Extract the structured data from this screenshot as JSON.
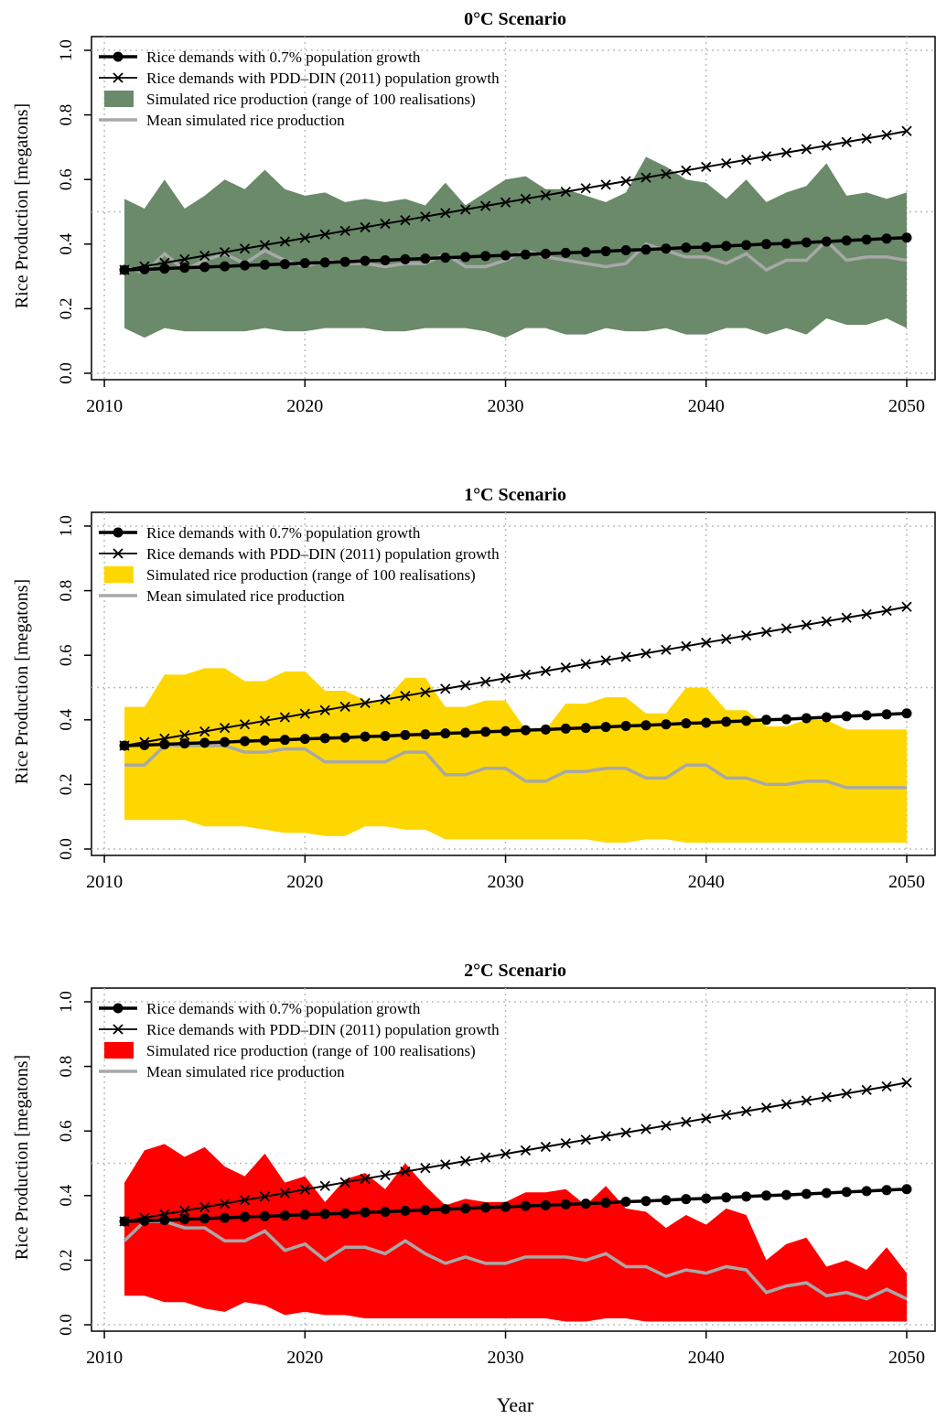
{
  "figure": {
    "ylabel": "Rice Production [megatons]",
    "xlabel": "Year"
  },
  "legend_labels": {
    "demand_07": "Rice demands with 0.7% population growth",
    "demand_pdd": "Rice demands with PDD–DIN (2011) population growth",
    "sim_range": "Simulated rice production (range of 100 realisations)",
    "sim_mean": "Mean simulated rice production"
  },
  "colors": {
    "demand_lines": "#000000",
    "mean_line": "#a8a8a8",
    "grid": "#bdbdbd"
  },
  "chart_data": [
    {
      "type": "area",
      "title": "0°C Scenario",
      "band_color": "#6a8a6a",
      "xlim": [
        2010,
        2051
      ],
      "ylim": [
        0.0,
        1.0
      ],
      "xticks": [
        2010,
        2020,
        2030,
        2040,
        2050
      ],
      "yticks": [
        "0.0",
        "0.2",
        "0.4",
        "0.6",
        "0.8",
        "1.0"
      ],
      "grid": true,
      "legend_position": "top-left",
      "x": [
        2011,
        2012,
        2013,
        2014,
        2015,
        2016,
        2017,
        2018,
        2019,
        2020,
        2021,
        2022,
        2023,
        2024,
        2025,
        2026,
        2027,
        2028,
        2029,
        2030,
        2031,
        2032,
        2033,
        2034,
        2035,
        2036,
        2037,
        2038,
        2039,
        2040,
        2041,
        2042,
        2043,
        2044,
        2045,
        2046,
        2047,
        2048,
        2049,
        2050
      ],
      "series": [
        {
          "name": "Rice demands with 0.7% population growth",
          "values": [
            0.32,
            0.322,
            0.324,
            0.327,
            0.329,
            0.331,
            0.334,
            0.336,
            0.338,
            0.341,
            0.343,
            0.345,
            0.348,
            0.35,
            0.353,
            0.355,
            0.358,
            0.36,
            0.363,
            0.365,
            0.368,
            0.37,
            0.373,
            0.375,
            0.378,
            0.381,
            0.383,
            0.386,
            0.389,
            0.391,
            0.394,
            0.397,
            0.4,
            0.402,
            0.405,
            0.408,
            0.411,
            0.414,
            0.417,
            0.42
          ]
        },
        {
          "name": "Rice demands with PDD–DIN (2011) population growth",
          "values": [
            0.32,
            0.331,
            0.342,
            0.353,
            0.364,
            0.375,
            0.386,
            0.397,
            0.408,
            0.419,
            0.43,
            0.441,
            0.452,
            0.463,
            0.474,
            0.485,
            0.496,
            0.507,
            0.518,
            0.529,
            0.54,
            0.551,
            0.562,
            0.573,
            0.584,
            0.595,
            0.606,
            0.617,
            0.628,
            0.639,
            0.65,
            0.661,
            0.672,
            0.683,
            0.694,
            0.705,
            0.716,
            0.727,
            0.738,
            0.75
          ]
        },
        {
          "name": "Simulated rice production (range of 100 realisations)",
          "lower": [
            0.14,
            0.11,
            0.14,
            0.13,
            0.13,
            0.13,
            0.13,
            0.14,
            0.13,
            0.13,
            0.14,
            0.14,
            0.14,
            0.13,
            0.13,
            0.14,
            0.14,
            0.14,
            0.13,
            0.11,
            0.14,
            0.14,
            0.12,
            0.12,
            0.14,
            0.13,
            0.13,
            0.14,
            0.12,
            0.12,
            0.14,
            0.14,
            0.12,
            0.14,
            0.12,
            0.17,
            0.15,
            0.15,
            0.17,
            0.14
          ],
          "upper": [
            0.54,
            0.51,
            0.6,
            0.51,
            0.55,
            0.6,
            0.57,
            0.63,
            0.57,
            0.55,
            0.56,
            0.53,
            0.54,
            0.53,
            0.54,
            0.52,
            0.59,
            0.52,
            0.56,
            0.6,
            0.61,
            0.57,
            0.57,
            0.55,
            0.53,
            0.56,
            0.67,
            0.64,
            0.6,
            0.59,
            0.54,
            0.6,
            0.53,
            0.56,
            0.58,
            0.65,
            0.55,
            0.56,
            0.54,
            0.56
          ]
        },
        {
          "name": "Mean simulated rice production",
          "values": [
            0.33,
            0.31,
            0.37,
            0.32,
            0.35,
            0.37,
            0.34,
            0.38,
            0.35,
            0.33,
            0.35,
            0.34,
            0.34,
            0.33,
            0.34,
            0.34,
            0.37,
            0.33,
            0.33,
            0.35,
            0.38,
            0.36,
            0.35,
            0.34,
            0.33,
            0.34,
            0.4,
            0.38,
            0.36,
            0.36,
            0.34,
            0.37,
            0.32,
            0.35,
            0.35,
            0.41,
            0.35,
            0.36,
            0.36,
            0.35
          ]
        }
      ]
    },
    {
      "type": "area",
      "title": "1°C Scenario",
      "band_color": "#ffd700",
      "xlim": [
        2010,
        2051
      ],
      "ylim": [
        0.0,
        1.0
      ],
      "xticks": [
        2010,
        2020,
        2030,
        2040,
        2050
      ],
      "yticks": [
        "0.0",
        "0.2",
        "0.4",
        "0.6",
        "0.8",
        "1.0"
      ],
      "grid": true,
      "legend_position": "top-left",
      "x": [
        2011,
        2012,
        2013,
        2014,
        2015,
        2016,
        2017,
        2018,
        2019,
        2020,
        2021,
        2022,
        2023,
        2024,
        2025,
        2026,
        2027,
        2028,
        2029,
        2030,
        2031,
        2032,
        2033,
        2034,
        2035,
        2036,
        2037,
        2038,
        2039,
        2040,
        2041,
        2042,
        2043,
        2044,
        2045,
        2046,
        2047,
        2048,
        2049,
        2050
      ],
      "series": [
        {
          "name": "Rice demands with 0.7% population growth",
          "values": [
            0.32,
            0.322,
            0.324,
            0.327,
            0.329,
            0.331,
            0.334,
            0.336,
            0.338,
            0.341,
            0.343,
            0.345,
            0.348,
            0.35,
            0.353,
            0.355,
            0.358,
            0.36,
            0.363,
            0.365,
            0.368,
            0.37,
            0.373,
            0.375,
            0.378,
            0.381,
            0.383,
            0.386,
            0.389,
            0.391,
            0.394,
            0.397,
            0.4,
            0.402,
            0.405,
            0.408,
            0.411,
            0.414,
            0.417,
            0.42
          ]
        },
        {
          "name": "Rice demands with PDD–DIN (2011) population growth",
          "values": [
            0.32,
            0.331,
            0.342,
            0.353,
            0.364,
            0.375,
            0.386,
            0.397,
            0.408,
            0.419,
            0.43,
            0.441,
            0.452,
            0.463,
            0.474,
            0.485,
            0.496,
            0.507,
            0.518,
            0.529,
            0.54,
            0.551,
            0.562,
            0.573,
            0.584,
            0.595,
            0.606,
            0.617,
            0.628,
            0.639,
            0.65,
            0.661,
            0.672,
            0.683,
            0.694,
            0.705,
            0.716,
            0.727,
            0.738,
            0.75
          ]
        },
        {
          "name": "Simulated rice production (range of 100 realisations)",
          "lower": [
            0.09,
            0.09,
            0.09,
            0.09,
            0.07,
            0.07,
            0.07,
            0.06,
            0.05,
            0.05,
            0.04,
            0.04,
            0.07,
            0.07,
            0.06,
            0.06,
            0.03,
            0.03,
            0.03,
            0.03,
            0.03,
            0.03,
            0.03,
            0.03,
            0.02,
            0.02,
            0.03,
            0.03,
            0.02,
            0.02,
            0.02,
            0.02,
            0.02,
            0.02,
            0.02,
            0.02,
            0.02,
            0.02,
            0.02,
            0.02
          ],
          "upper": [
            0.44,
            0.44,
            0.54,
            0.54,
            0.56,
            0.56,
            0.52,
            0.52,
            0.55,
            0.55,
            0.49,
            0.49,
            0.46,
            0.46,
            0.53,
            0.53,
            0.44,
            0.44,
            0.46,
            0.46,
            0.37,
            0.37,
            0.45,
            0.45,
            0.47,
            0.47,
            0.42,
            0.42,
            0.5,
            0.5,
            0.43,
            0.43,
            0.38,
            0.38,
            0.4,
            0.4,
            0.37,
            0.37,
            0.37,
            0.37
          ]
        },
        {
          "name": "Mean simulated rice production",
          "values": [
            0.26,
            0.26,
            0.32,
            0.32,
            0.32,
            0.32,
            0.3,
            0.3,
            0.31,
            0.31,
            0.27,
            0.27,
            0.27,
            0.27,
            0.3,
            0.3,
            0.23,
            0.23,
            0.25,
            0.25,
            0.21,
            0.21,
            0.24,
            0.24,
            0.25,
            0.25,
            0.22,
            0.22,
            0.26,
            0.26,
            0.22,
            0.22,
            0.2,
            0.2,
            0.21,
            0.21,
            0.19,
            0.19,
            0.19,
            0.19
          ]
        }
      ]
    },
    {
      "type": "area",
      "title": "2°C Scenario",
      "band_color": "#ff0000",
      "xlim": [
        2010,
        2051
      ],
      "ylim": [
        0.0,
        1.0
      ],
      "xticks": [
        2010,
        2020,
        2030,
        2040,
        2050
      ],
      "yticks": [
        "0.0",
        "0.2",
        "0.4",
        "0.6",
        "0.8",
        "1.0"
      ],
      "grid": true,
      "legend_position": "top-left",
      "x": [
        2011,
        2012,
        2013,
        2014,
        2015,
        2016,
        2017,
        2018,
        2019,
        2020,
        2021,
        2022,
        2023,
        2024,
        2025,
        2026,
        2027,
        2028,
        2029,
        2030,
        2031,
        2032,
        2033,
        2034,
        2035,
        2036,
        2037,
        2038,
        2039,
        2040,
        2041,
        2042,
        2043,
        2044,
        2045,
        2046,
        2047,
        2048,
        2049,
        2050
      ],
      "series": [
        {
          "name": "Rice demands with 0.7% population growth",
          "values": [
            0.32,
            0.322,
            0.324,
            0.327,
            0.329,
            0.331,
            0.334,
            0.336,
            0.338,
            0.341,
            0.343,
            0.345,
            0.348,
            0.35,
            0.353,
            0.355,
            0.358,
            0.36,
            0.363,
            0.365,
            0.368,
            0.37,
            0.373,
            0.375,
            0.378,
            0.381,
            0.383,
            0.386,
            0.389,
            0.391,
            0.394,
            0.397,
            0.4,
            0.402,
            0.405,
            0.408,
            0.411,
            0.414,
            0.417,
            0.42
          ]
        },
        {
          "name": "Rice demands with PDD–DIN (2011) population growth",
          "values": [
            0.32,
            0.331,
            0.342,
            0.353,
            0.364,
            0.375,
            0.386,
            0.397,
            0.408,
            0.419,
            0.43,
            0.441,
            0.452,
            0.463,
            0.474,
            0.485,
            0.496,
            0.507,
            0.518,
            0.529,
            0.54,
            0.551,
            0.562,
            0.573,
            0.584,
            0.595,
            0.606,
            0.617,
            0.628,
            0.639,
            0.65,
            0.661,
            0.672,
            0.683,
            0.694,
            0.705,
            0.716,
            0.727,
            0.738,
            0.75
          ]
        },
        {
          "name": "Simulated rice production (range of 100 realisations)",
          "lower": [
            0.09,
            0.09,
            0.07,
            0.07,
            0.05,
            0.04,
            0.07,
            0.06,
            0.03,
            0.04,
            0.03,
            0.03,
            0.02,
            0.02,
            0.02,
            0.02,
            0.02,
            0.02,
            0.02,
            0.02,
            0.02,
            0.02,
            0.01,
            0.01,
            0.02,
            0.02,
            0.01,
            0.01,
            0.01,
            0.01,
            0.01,
            0.01,
            0.01,
            0.01,
            0.01,
            0.01,
            0.01,
            0.01,
            0.01,
            0.01
          ],
          "upper": [
            0.44,
            0.54,
            0.56,
            0.52,
            0.55,
            0.49,
            0.46,
            0.53,
            0.44,
            0.46,
            0.38,
            0.45,
            0.47,
            0.42,
            0.5,
            0.43,
            0.37,
            0.39,
            0.38,
            0.38,
            0.41,
            0.41,
            0.42,
            0.37,
            0.43,
            0.36,
            0.35,
            0.3,
            0.34,
            0.31,
            0.36,
            0.34,
            0.2,
            0.25,
            0.27,
            0.18,
            0.2,
            0.17,
            0.24,
            0.16
          ]
        },
        {
          "name": "Mean simulated rice production",
          "values": [
            0.26,
            0.32,
            0.32,
            0.3,
            0.3,
            0.26,
            0.26,
            0.29,
            0.23,
            0.25,
            0.2,
            0.24,
            0.24,
            0.22,
            0.26,
            0.22,
            0.19,
            0.21,
            0.19,
            0.19,
            0.21,
            0.21,
            0.21,
            0.2,
            0.22,
            0.18,
            0.18,
            0.15,
            0.17,
            0.16,
            0.18,
            0.17,
            0.1,
            0.12,
            0.13,
            0.09,
            0.1,
            0.08,
            0.11,
            0.08
          ]
        }
      ]
    }
  ]
}
